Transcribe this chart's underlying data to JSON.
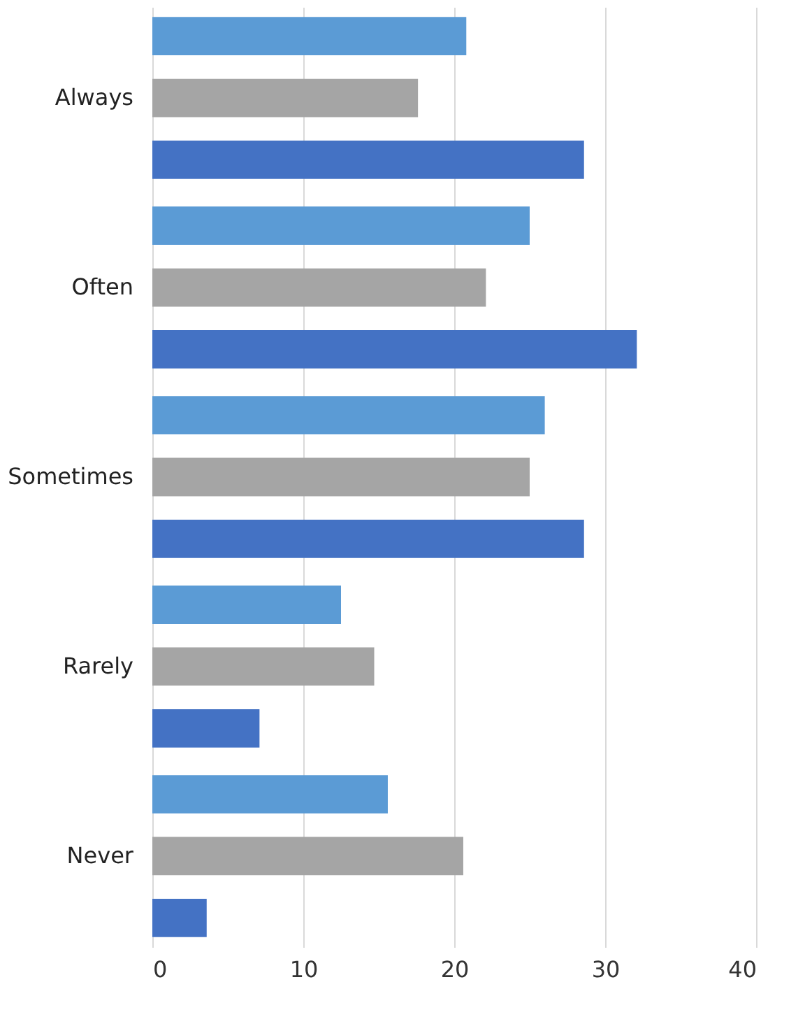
{
  "chart_data": {
    "type": "bar",
    "orientation": "horizontal",
    "categories": [
      "Always",
      "Often",
      "Sometimes",
      "Rarely",
      "Never"
    ],
    "series": [
      {
        "color": "#5b9bd5",
        "values": [
          20.8,
          25,
          26,
          12.5,
          15.6
        ]
      },
      {
        "color": "#a5a5a5",
        "values": [
          17.6,
          22.1,
          25,
          14.7,
          20.6
        ]
      },
      {
        "color": "#4472c4",
        "values": [
          28.6,
          32.1,
          28.6,
          7.1,
          3.6
        ]
      }
    ],
    "xlim": [
      0,
      40
    ],
    "xticks": [
      0,
      10,
      20,
      30,
      40
    ],
    "grid": "x"
  }
}
